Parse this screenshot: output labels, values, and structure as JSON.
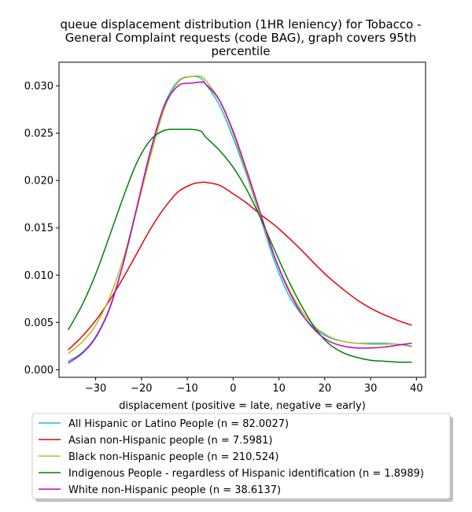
{
  "chart_data": {
    "type": "line",
    "title_lines": [
      "queue displacement distribution (1HR leniency) for Tobacco -",
      "General Complaint  requests (code BAG), graph covers 95th",
      "percentile"
    ],
    "xlabel": "displacement (positive = late, negative = early)",
    "ylabel": "",
    "xlim": [
      -38,
      42
    ],
    "ylim": [
      -0.0008,
      0.0325
    ],
    "xticks": [
      -30,
      -20,
      -10,
      0,
      10,
      20,
      30,
      40
    ],
    "xtick_labels": [
      "−30",
      "−20",
      "−10",
      "0",
      "10",
      "20",
      "30",
      "40"
    ],
    "yticks": [
      0.0,
      0.005,
      0.01,
      0.015,
      0.02,
      0.025,
      0.03
    ],
    "ytick_labels": [
      "0.000",
      "0.005",
      "0.010",
      "0.015",
      "0.020",
      "0.025",
      "0.030"
    ],
    "grid": false,
    "legend_position": "below",
    "x": [
      -36,
      -33,
      -30,
      -27,
      -24,
      -21,
      -18,
      -15,
      -12,
      -9,
      -7,
      -6,
      -3,
      0,
      3,
      6,
      9,
      12,
      15,
      18,
      21,
      24,
      27,
      30,
      33,
      36,
      39
    ],
    "series": [
      {
        "name": "All Hispanic or Latino People (n = 82.0027)",
        "color": "#17becf",
        "values": [
          0.0009,
          0.0018,
          0.0035,
          0.0065,
          0.0112,
          0.017,
          0.023,
          0.028,
          0.0305,
          0.031,
          0.0308,
          0.0302,
          0.028,
          0.0245,
          0.0205,
          0.016,
          0.0115,
          0.008,
          0.0058,
          0.0043,
          0.0034,
          0.003,
          0.0028,
          0.0028,
          0.0028,
          0.0027,
          0.0025
        ]
      },
      {
        "name": "Asian non-Hispanic people (n = 7.5981)",
        "color": "#e8000b",
        "values": [
          0.0021,
          0.0035,
          0.0052,
          0.0073,
          0.0097,
          0.0123,
          0.0149,
          0.0171,
          0.0188,
          0.0196,
          0.0198,
          0.0198,
          0.0195,
          0.0186,
          0.0176,
          0.0164,
          0.0153,
          0.014,
          0.0126,
          0.0111,
          0.0097,
          0.0085,
          0.0074,
          0.0065,
          0.0058,
          0.0052,
          0.0047
        ]
      },
      {
        "name": "Black non-Hispanic people (n = 210.524)",
        "color": "#bcbd22",
        "values": [
          0.0017,
          0.0029,
          0.0047,
          0.0076,
          0.0117,
          0.017,
          0.0226,
          0.0276,
          0.0304,
          0.031,
          0.031,
          0.0306,
          0.0285,
          0.025,
          0.0207,
          0.0162,
          0.012,
          0.0087,
          0.0062,
          0.0045,
          0.0035,
          0.003,
          0.0028,
          0.0027,
          0.0027,
          0.0027,
          0.0024
        ]
      },
      {
        "name": "Indigenous People - regardless of Hispanic identification (n = 1.8989)",
        "color": "#008000",
        "values": [
          0.0042,
          0.0068,
          0.0101,
          0.0141,
          0.0182,
          0.0219,
          0.0243,
          0.0253,
          0.0254,
          0.0254,
          0.0252,
          0.0246,
          0.0232,
          0.0214,
          0.019,
          0.016,
          0.0127,
          0.0095,
          0.0067,
          0.0043,
          0.0027,
          0.0018,
          0.0013,
          0.001,
          0.0009,
          0.0008,
          0.0008
        ]
      },
      {
        "name": "White non-Hispanic people (n = 38.6137)",
        "color": "#c000c0",
        "values": [
          0.0007,
          0.0017,
          0.0034,
          0.0064,
          0.0112,
          0.0172,
          0.0232,
          0.0279,
          0.03,
          0.0303,
          0.0304,
          0.0302,
          0.0285,
          0.0252,
          0.021,
          0.0165,
          0.012,
          0.0085,
          0.0059,
          0.0041,
          0.003,
          0.0025,
          0.0023,
          0.0023,
          0.0024,
          0.0026,
          0.0028
        ]
      }
    ]
  }
}
